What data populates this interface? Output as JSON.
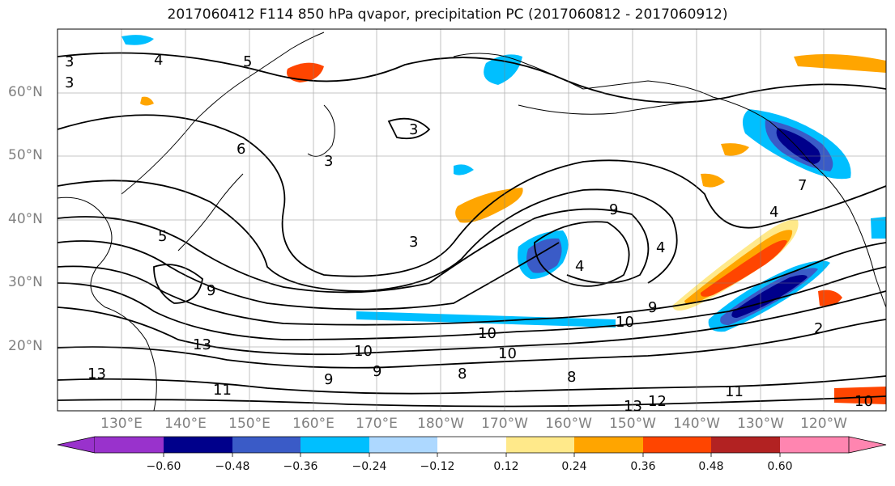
{
  "title": "2017060412 F114 850 hPa qvapor, precipitation PC (2017060812 - 2017060912)",
  "lat_labels": [
    "60°N",
    "50°N",
    "40°N",
    "30°N",
    "20°N"
  ],
  "lon_labels": [
    "130°E",
    "140°E",
    "150°E",
    "160°E",
    "170°E",
    "180°W",
    "170°W",
    "160°W",
    "150°W",
    "140°W",
    "130°W",
    "120°W"
  ],
  "contour_labels": [
    "3",
    "3",
    "4",
    "5",
    "6",
    "3",
    "3",
    "3",
    "5",
    "9",
    "4",
    "4",
    "9",
    "10",
    "10",
    "10",
    "13",
    "13",
    "11",
    "10",
    "9",
    "9",
    "8",
    "13",
    "12",
    "11",
    "10",
    "2",
    "4",
    "9",
    "7",
    "8"
  ],
  "colorbar": {
    "ticks": [
      "−0.60",
      "−0.48",
      "−0.36",
      "−0.24",
      "−0.12",
      "0.12",
      "0.24",
      "0.36",
      "0.48",
      "0.60"
    ],
    "colors": [
      "#9932cc",
      "#00008b",
      "#3a5bc7",
      "#00bfff",
      "#add8ff",
      "#ffffff",
      "#ffe98a",
      "#ffa500",
      "#ff4500",
      "#b22222",
      "#ff85b0"
    ]
  }
}
